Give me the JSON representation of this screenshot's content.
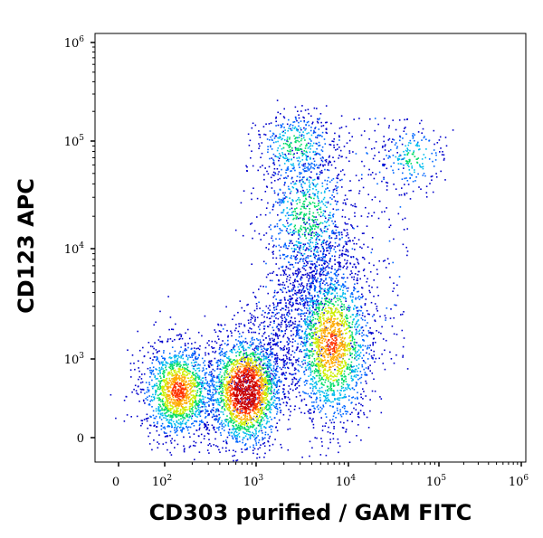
{
  "chart_data": {
    "type": "scatter",
    "title": "",
    "xlabel": "CD303 purified / GAM FITC",
    "ylabel": "CD123 APC",
    "x_scale": "biexponential",
    "y_scale": "biexponential",
    "x_tick_labels": [
      "0",
      "10",
      "10",
      "10",
      "10",
      "10"
    ],
    "x_tick_exponents": [
      "",
      "2",
      "3",
      "4",
      "5",
      "6"
    ],
    "y_tick_labels": [
      "0",
      "10",
      "10",
      "10",
      "10"
    ],
    "y_tick_exponents": [
      "",
      "3",
      "4",
      "5",
      "6"
    ],
    "grid": false,
    "colormap": [
      "#0000cc",
      "#0066ff",
      "#00bbee",
      "#00dd66",
      "#ccee00",
      "#ffaa00",
      "#ff3300",
      "#cc0000"
    ],
    "populations": [
      {
        "x": 140,
        "y": 600,
        "count": 9000,
        "density": "high"
      },
      {
        "x": 750,
        "y": 600,
        "count": 12000,
        "density": "very high"
      },
      {
        "x": 6500,
        "y": 1400,
        "count": 11000,
        "density": "high"
      },
      {
        "x": 3500,
        "y": 20000,
        "count": 4000,
        "density": "medium"
      },
      {
        "x": 2600,
        "y": 90000,
        "count": 2200,
        "density": "medium"
      },
      {
        "x": 50000,
        "y": 70000,
        "count": 1200,
        "density": "medium"
      }
    ]
  }
}
